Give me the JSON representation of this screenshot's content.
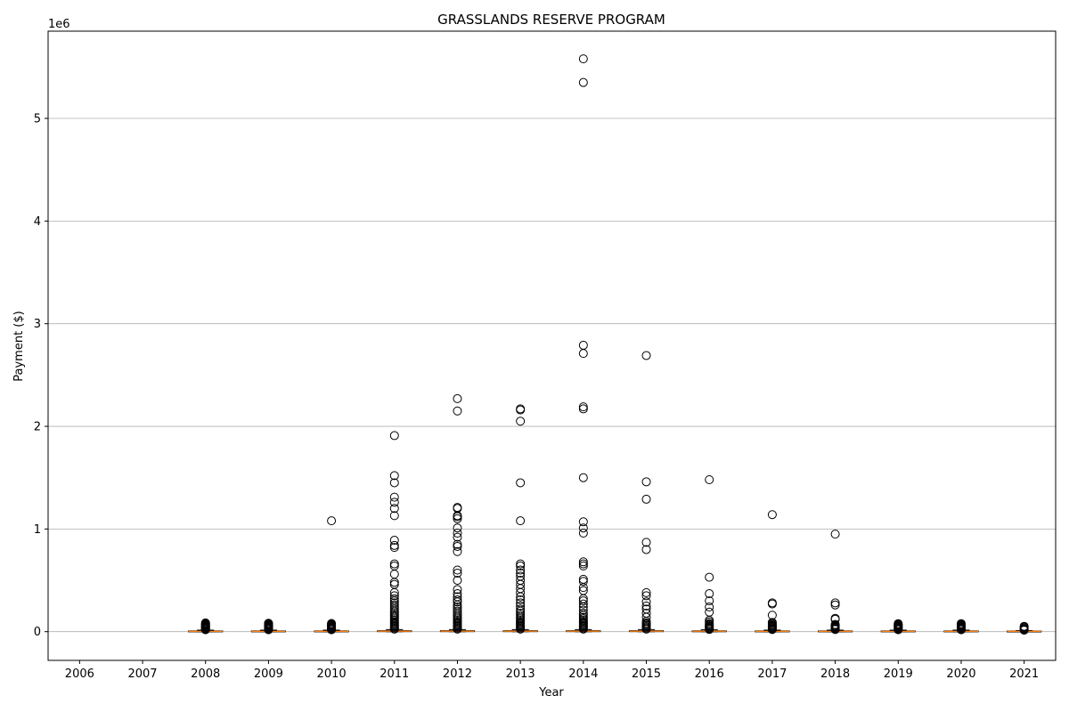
{
  "chart_data": {
    "type": "box",
    "title": "GRASSLANDS RESERVE PROGRAM",
    "xlabel": "Year",
    "ylabel": "Payment ($)",
    "y_offset_label": "1e6",
    "ylim": [
      -280000,
      5850000
    ],
    "y_ticks": [
      0,
      1000000,
      2000000,
      3000000,
      4000000,
      5000000
    ],
    "y_tick_labels": [
      "0",
      "1",
      "2",
      "3",
      "4",
      "5"
    ],
    "grid": "y",
    "categories": [
      "2006",
      "2007",
      "2008",
      "2009",
      "2010",
      "2011",
      "2012",
      "2013",
      "2014",
      "2015",
      "2016",
      "2017",
      "2018",
      "2019",
      "2020",
      "2021"
    ],
    "box_color": "#000000",
    "median_color": "#ff7f0e",
    "grid_color": "#b0b0b0",
    "boxes": [
      {
        "year": "2006",
        "empty": true,
        "q1": 0,
        "median": 0,
        "q3": 0,
        "whisker_low": 0,
        "whisker_high": 0,
        "outliers": []
      },
      {
        "year": "2007",
        "empty": true,
        "q1": 0,
        "median": 0,
        "q3": 0,
        "whisker_low": 0,
        "whisker_high": 0,
        "outliers": []
      },
      {
        "year": "2008",
        "q1": 1000,
        "median": 3000,
        "q3": 7000,
        "whisker_low": 0,
        "whisker_high": 15000,
        "outliers": [
          18000,
          22000,
          27000,
          32000,
          37000,
          42000,
          47000,
          52000,
          57000,
          62000,
          67000,
          72000,
          78000,
          85000
        ]
      },
      {
        "year": "2009",
        "q1": 1000,
        "median": 3000,
        "q3": 7000,
        "whisker_low": 0,
        "whisker_high": 15000,
        "outliers": [
          18000,
          22000,
          27000,
          32000,
          37000,
          42000,
          47000,
          52000,
          57000,
          62000,
          67000,
          72000,
          78000,
          82000
        ]
      },
      {
        "year": "2010",
        "q1": 1000,
        "median": 3000,
        "q3": 7000,
        "whisker_low": 0,
        "whisker_high": 15000,
        "outliers": [
          18000,
          22000,
          27000,
          32000,
          37000,
          42000,
          47000,
          52000,
          57000,
          62000,
          67000,
          72000,
          80000,
          1080000
        ]
      },
      {
        "year": "2011",
        "q1": 1000,
        "median": 4000,
        "q3": 9000,
        "whisker_low": 0,
        "whisker_high": 20000,
        "outliers": [
          25000,
          35000,
          45000,
          55000,
          65000,
          75000,
          85000,
          95000,
          110000,
          125000,
          140000,
          155000,
          170000,
          185000,
          200000,
          220000,
          240000,
          260000,
          280000,
          300000,
          320000,
          350000,
          380000,
          460000,
          480000,
          560000,
          640000,
          660000,
          820000,
          840000,
          890000,
          1130000,
          1200000,
          1260000,
          1310000,
          1450000,
          1520000,
          1910000
        ]
      },
      {
        "year": "2012",
        "q1": 1000,
        "median": 4000,
        "q3": 9000,
        "whisker_low": 0,
        "whisker_high": 20000,
        "outliers": [
          25000,
          35000,
          45000,
          55000,
          65000,
          75000,
          85000,
          95000,
          110000,
          125000,
          140000,
          160000,
          180000,
          200000,
          220000,
          240000,
          260000,
          290000,
          310000,
          340000,
          370000,
          410000,
          500000,
          570000,
          600000,
          780000,
          830000,
          850000,
          920000,
          960000,
          1010000,
          1100000,
          1120000,
          1130000,
          1200000,
          1210000,
          2150000,
          2270000
        ]
      },
      {
        "year": "2013",
        "q1": 1000,
        "median": 4000,
        "q3": 9000,
        "whisker_low": 0,
        "whisker_high": 20000,
        "outliers": [
          25000,
          35000,
          45000,
          55000,
          65000,
          75000,
          85000,
          95000,
          110000,
          125000,
          140000,
          160000,
          180000,
          200000,
          220000,
          250000,
          280000,
          310000,
          340000,
          380000,
          420000,
          460000,
          500000,
          540000,
          570000,
          600000,
          640000,
          660000,
          1080000,
          1450000,
          2050000,
          2160000,
          2170000
        ]
      },
      {
        "year": "2014",
        "q1": 1000,
        "median": 4000,
        "q3": 9000,
        "whisker_low": 0,
        "whisker_high": 20000,
        "outliers": [
          25000,
          35000,
          45000,
          55000,
          65000,
          75000,
          85000,
          95000,
          110000,
          125000,
          140000,
          160000,
          180000,
          210000,
          240000,
          270000,
          300000,
          320000,
          400000,
          430000,
          490000,
          510000,
          640000,
          660000,
          680000,
          960000,
          1010000,
          1070000,
          1500000,
          2170000,
          2190000,
          2710000,
          2790000,
          5350000,
          5580000
        ]
      },
      {
        "year": "2015",
        "q1": 1000,
        "median": 4000,
        "q3": 9000,
        "whisker_low": 0,
        "whisker_high": 20000,
        "outliers": [
          25000,
          35000,
          45000,
          55000,
          65000,
          75000,
          85000,
          100000,
          140000,
          180000,
          220000,
          250000,
          290000,
          350000,
          380000,
          800000,
          870000,
          1290000,
          1460000,
          2690000
        ]
      },
      {
        "year": "2016",
        "q1": 1000,
        "median": 4000,
        "q3": 8000,
        "whisker_low": 0,
        "whisker_high": 18000,
        "outliers": [
          22000,
          30000,
          38000,
          46000,
          54000,
          62000,
          70000,
          80000,
          95000,
          110000,
          190000,
          240000,
          300000,
          370000,
          530000,
          1480000
        ]
      },
      {
        "year": "2017",
        "q1": 1000,
        "median": 3000,
        "q3": 7000,
        "whisker_low": 0,
        "whisker_high": 15000,
        "outliers": [
          20000,
          27000,
          34000,
          41000,
          48000,
          55000,
          62000,
          70000,
          80000,
          90000,
          160000,
          270000,
          280000,
          1140000
        ]
      },
      {
        "year": "2018",
        "q1": 1000,
        "median": 3000,
        "q3": 7000,
        "whisker_low": 0,
        "whisker_high": 15000,
        "outliers": [
          20000,
          27000,
          34000,
          41000,
          48000,
          55000,
          62000,
          70000,
          120000,
          130000,
          260000,
          280000,
          950000
        ]
      },
      {
        "year": "2019",
        "q1": 1000,
        "median": 3000,
        "q3": 7000,
        "whisker_low": 0,
        "whisker_high": 15000,
        "outliers": [
          18000,
          24000,
          30000,
          36000,
          42000,
          48000,
          54000,
          60000,
          66000,
          72000,
          78000
        ]
      },
      {
        "year": "2020",
        "q1": 1000,
        "median": 3000,
        "q3": 7000,
        "whisker_low": 0,
        "whisker_high": 15000,
        "outliers": [
          18000,
          24000,
          30000,
          36000,
          42000,
          48000,
          54000,
          60000,
          66000,
          72000,
          78000
        ]
      },
      {
        "year": "2021",
        "q1": 1000,
        "median": 3000,
        "q3": 6000,
        "whisker_low": 0,
        "whisker_high": 10000,
        "outliers": [
          14000,
          20000,
          28000,
          36000,
          44000,
          52000
        ]
      }
    ]
  }
}
